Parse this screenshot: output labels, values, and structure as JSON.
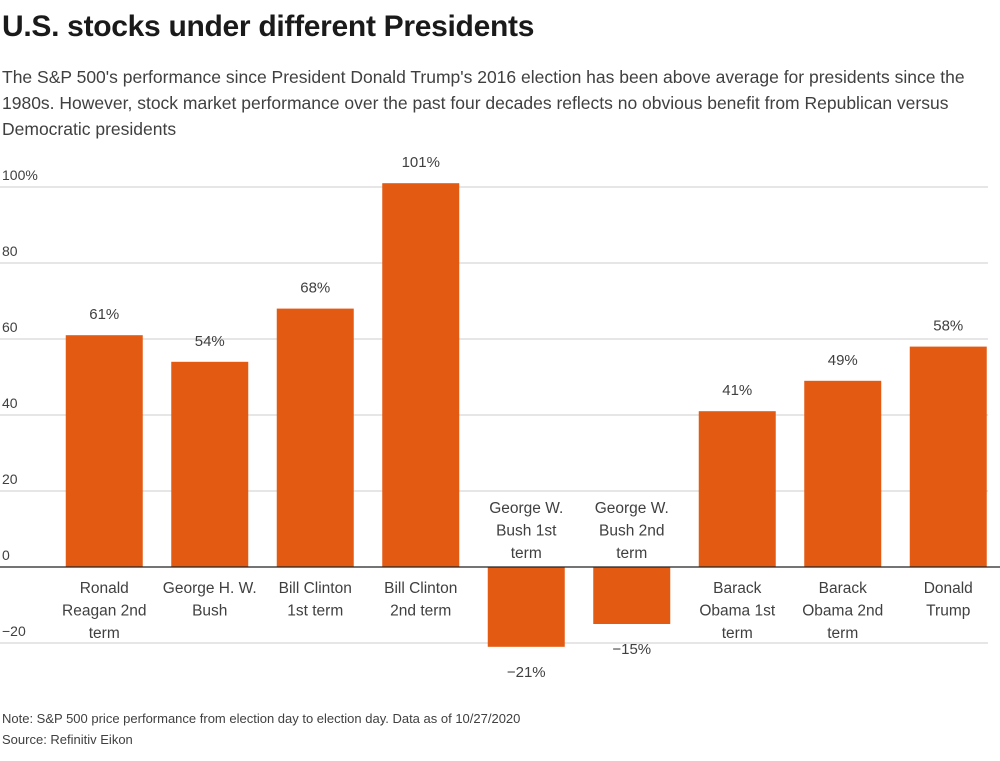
{
  "header": {
    "title": "U.S. stocks under different Presidents",
    "subtitle": "The S&P 500's performance since President Donald Trump's 2016 election has been above average for presidents since the 1980s. However, stock market performance over the past four decades reflects no obvious benefit from Republican versus Democratic presidents"
  },
  "footer": {
    "note": "Note: S&P 500 price performance from election day to election day. Data as of 10/27/2020",
    "source": "Source: Refinitiv Eikon"
  },
  "colors": {
    "bar": "#e35a12",
    "grid": "#cccccc",
    "axis": "#222222"
  },
  "chart_data": {
    "type": "bar",
    "title": "U.S. stocks under different Presidents",
    "xlabel": "",
    "ylabel": "",
    "ylim": [
      -20,
      100
    ],
    "yticks": [
      {
        "value": 100,
        "label": "100%"
      },
      {
        "value": 80,
        "label": "80"
      },
      {
        "value": 60,
        "label": "60"
      },
      {
        "value": 40,
        "label": "40"
      },
      {
        "value": 20,
        "label": "20"
      },
      {
        "value": 0,
        "label": "0"
      },
      {
        "value": -20,
        "label": "−20"
      }
    ],
    "grid": true,
    "categories": [
      [
        "Ronald",
        "Reagan 2nd",
        "term"
      ],
      [
        "George H. W.",
        "Bush"
      ],
      [
        "Bill Clinton",
        "1st term"
      ],
      [
        "Bill Clinton",
        "2nd term"
      ],
      [
        "George W.",
        "Bush 1st",
        "term"
      ],
      [
        "George W.",
        "Bush 2nd",
        "term"
      ],
      [
        "Barack",
        "Obama 1st",
        "term"
      ],
      [
        "Barack",
        "Obama 2nd",
        "term"
      ],
      [
        "Donald",
        "Trump"
      ]
    ],
    "values": [
      61,
      54,
      68,
      101,
      -21,
      -15,
      41,
      49,
      58
    ],
    "value_labels": [
      "61%",
      "54%",
      "68%",
      "101%",
      "−21%",
      "−15%",
      "41%",
      "49%",
      "58%"
    ]
  }
}
